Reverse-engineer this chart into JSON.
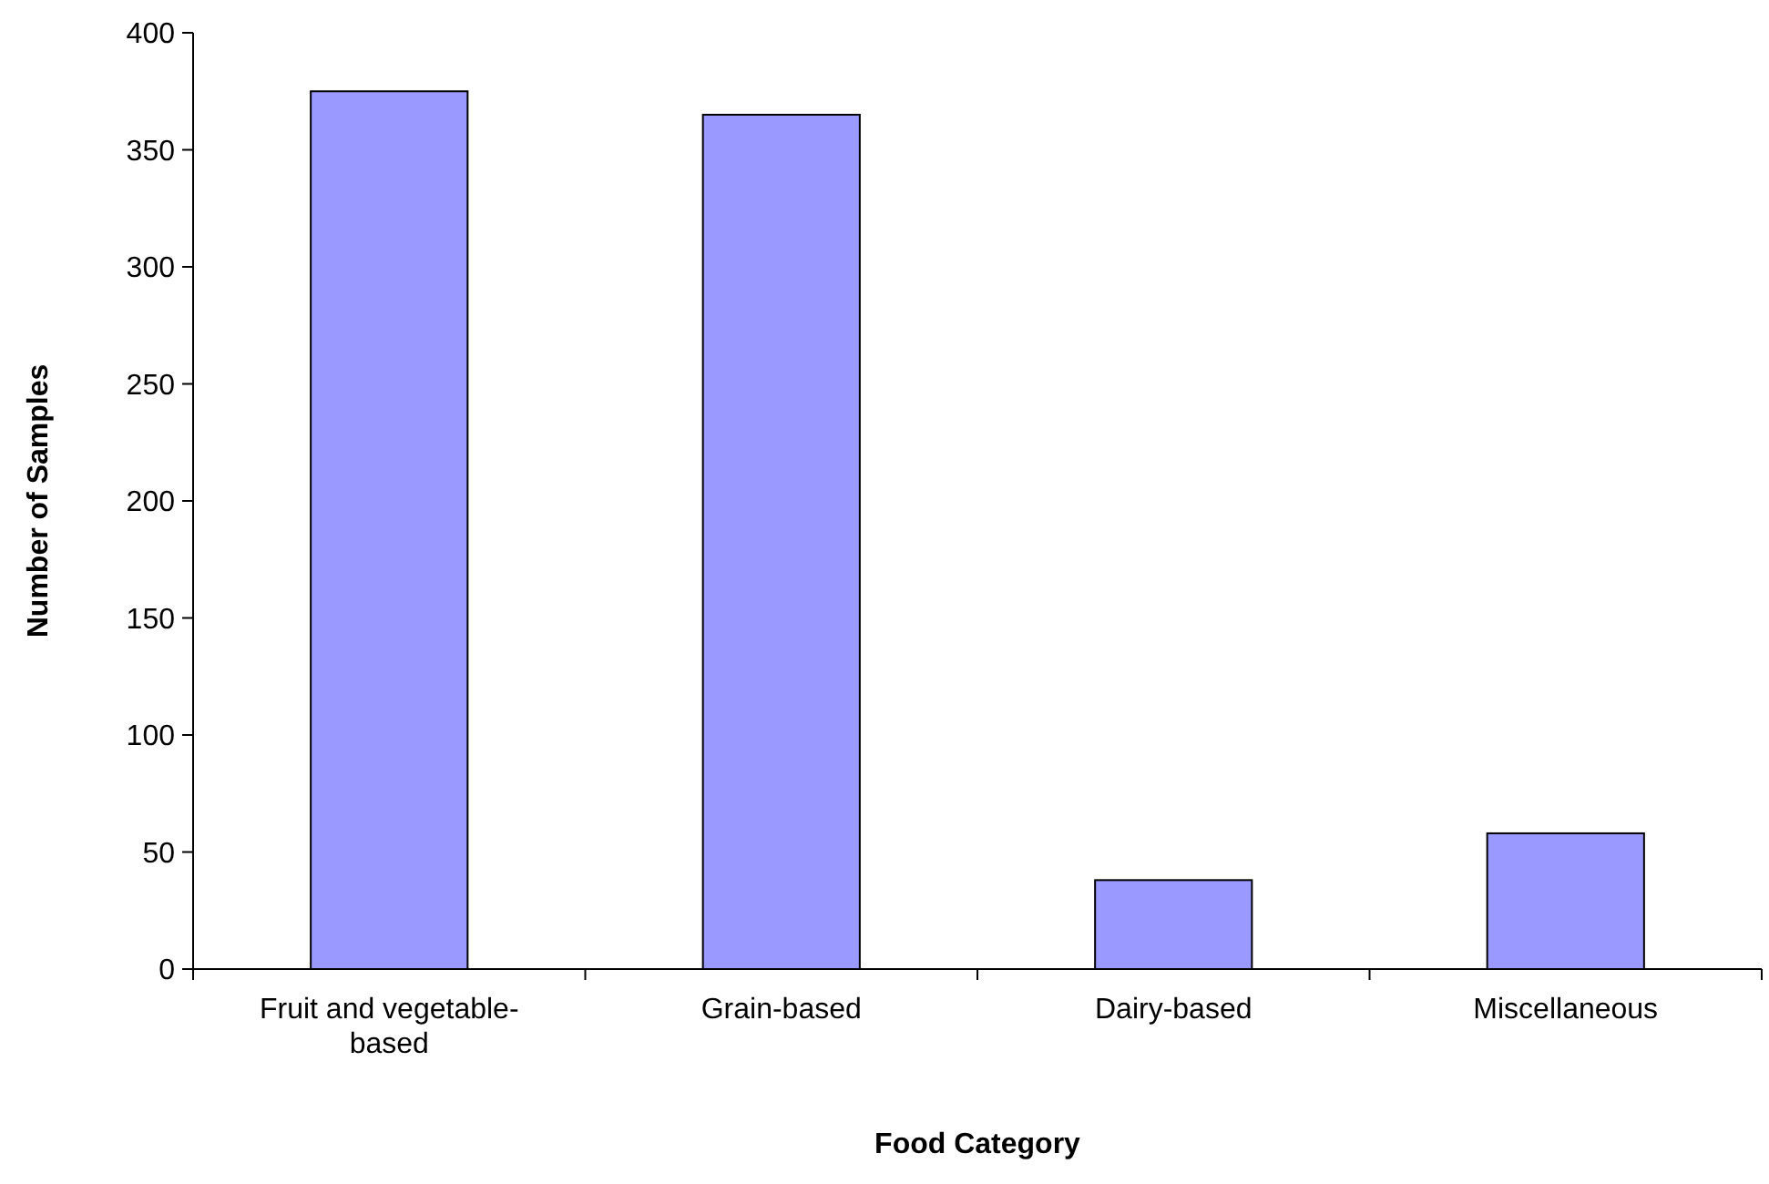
{
  "chart_data": {
    "type": "bar",
    "xlabel": "Food Category",
    "ylabel": "Number of Samples",
    "categories": [
      "Fruit and vegetable-based",
      "Grain-based",
      "Dairy-based",
      "Miscellaneous"
    ],
    "values": [
      375,
      365,
      38,
      58
    ],
    "color": "#9999ff",
    "ylim": [
      0,
      400
    ],
    "yticks": [
      0,
      50,
      100,
      150,
      200,
      250,
      300,
      350,
      400
    ],
    "grid": false
  }
}
